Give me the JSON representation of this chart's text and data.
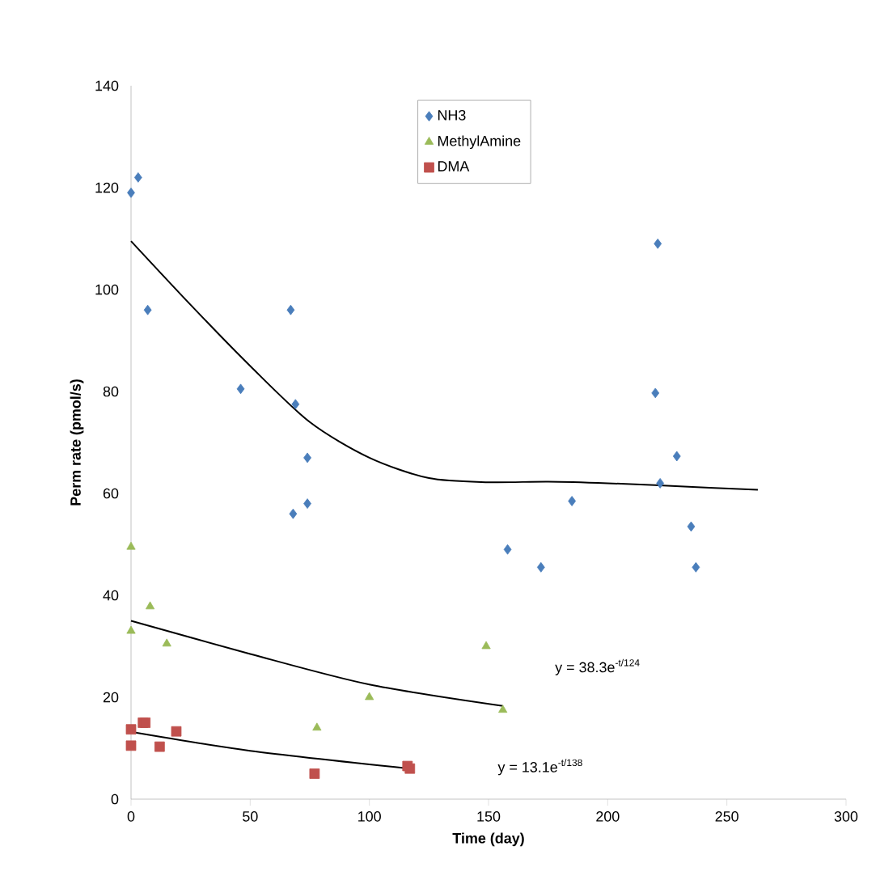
{
  "chart_data": {
    "type": "scatter",
    "xlabel": "Time (day)",
    "ylabel": "Perm rate (pmol/s)",
    "xlim": [
      0,
      300
    ],
    "xticks": [
      0,
      50,
      100,
      150,
      200,
      250,
      300
    ],
    "ylim": [
      0,
      140
    ],
    "yticks": [
      0,
      20,
      40,
      60,
      80,
      100,
      120,
      140
    ],
    "grid": false,
    "legend": "top",
    "series": [
      {
        "name": "NH3",
        "color": "#4a7ebb",
        "marker": "diamond",
        "x": [
          0,
          3,
          7,
          46,
          67,
          69,
          74,
          74,
          68,
          158,
          172,
          185,
          221,
          220,
          222,
          229,
          235,
          237
        ],
        "values": [
          119,
          122,
          96,
          80.5,
          96,
          77.5,
          67,
          58,
          56,
          49,
          45.5,
          58.5,
          109,
          79.7,
          62,
          67.3,
          53.5,
          45.5
        ]
      },
      {
        "name": "MethylAmine",
        "color": "#9bbb59",
        "marker": "triangle",
        "x": [
          0,
          0,
          8,
          15,
          78,
          100,
          149,
          156
        ],
        "values": [
          49.5,
          33,
          37.8,
          30.5,
          14,
          20,
          30,
          17.5
        ]
      },
      {
        "name": "DMA",
        "color": "#c0504d",
        "marker": "square",
        "x": [
          0,
          0,
          5,
          6,
          12,
          19,
          77,
          116,
          117
        ],
        "values": [
          13.7,
          10.5,
          15,
          15,
          10.3,
          13.3,
          5,
          6.5,
          6
        ]
      },
      {
        "type": "line",
        "color": "#000000",
        "marker": "none",
        "line_style": "solid",
        "x": [
          0,
          25,
          50,
          75,
          100,
          125,
          150,
          175,
          200,
          225,
          263
        ],
        "values": [
          109.5,
          97,
          85,
          74,
          67,
          63,
          62.2,
          62.3,
          62,
          61.5,
          60.7
        ]
      },
      {
        "type": "line",
        "color": "#000000",
        "marker": "none",
        "line_style": "solid",
        "x": [
          0,
          50,
          100,
          156
        ],
        "values": [
          35,
          28.5,
          22.5,
          18.3
        ]
      },
      {
        "type": "line",
        "color": "#000000",
        "marker": "none",
        "line_style": "solid",
        "x": [
          0,
          50,
          117
        ],
        "values": [
          13.2,
          9.5,
          6
        ]
      }
    ],
    "annotations": [
      "y = 38.3e$^{-t/124}$",
      "y = 13.1e$^{-t/138}$"
    ]
  }
}
